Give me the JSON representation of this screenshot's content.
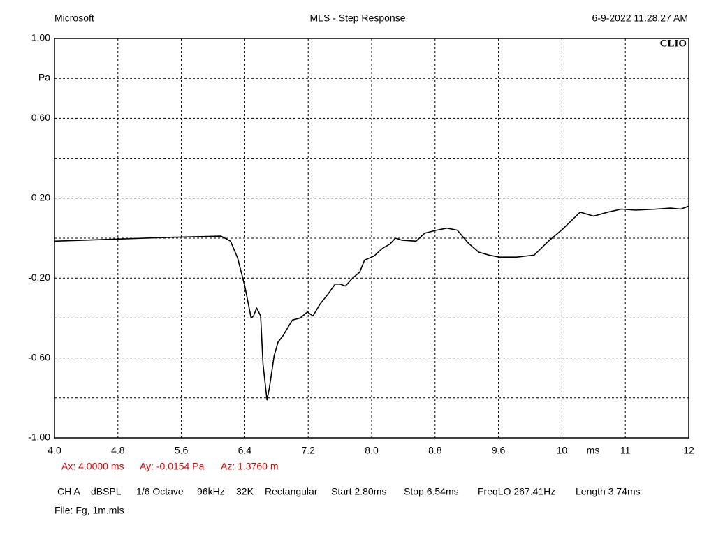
{
  "header": {
    "left": "Microsoft",
    "date": "6-9-2022 11.28.27 AM",
    "brand": "CLIO"
  },
  "chart_data": {
    "type": "line",
    "title": "MLS - Step Response",
    "xlabel": "ms",
    "ylabel": "Pa",
    "color": "#000000",
    "x": [
      4.0,
      5.52,
      6.1,
      6.22,
      6.31,
      6.4,
      6.48,
      6.51,
      6.55,
      6.6,
      6.63,
      6.68,
      6.71,
      6.77,
      6.82,
      6.88,
      7.0,
      7.1,
      7.19,
      7.26,
      7.35,
      7.45,
      7.54,
      7.6,
      7.67,
      7.76,
      7.85,
      7.91,
      8.03,
      8.14,
      8.23,
      8.3,
      8.38,
      8.56,
      8.67,
      8.82,
      8.95,
      9.08,
      9.22,
      9.35,
      9.48,
      9.61,
      9.83,
      10.05,
      10.23,
      10.41,
      10.63,
      10.8,
      10.98,
      11.15,
      11.33,
      11.59,
      11.77,
      11.9,
      12.0
    ],
    "values": [
      -0.015,
      0.005,
      0.01,
      -0.015,
      -0.1,
      -0.24,
      -0.4,
      -0.39,
      -0.35,
      -0.39,
      -0.63,
      -0.81,
      -0.75,
      -0.59,
      -0.52,
      -0.49,
      -0.41,
      -0.4,
      -0.37,
      -0.39,
      -0.33,
      -0.28,
      -0.23,
      -0.23,
      -0.24,
      -0.2,
      -0.17,
      -0.11,
      -0.09,
      -0.05,
      -0.03,
      0.0,
      -0.01,
      -0.015,
      0.025,
      0.04,
      0.05,
      0.04,
      -0.025,
      -0.07,
      -0.085,
      -0.095,
      -0.095,
      -0.085,
      -0.015,
      0.045,
      0.13,
      0.11,
      0.13,
      0.145,
      0.14,
      0.145,
      0.15,
      0.145,
      0.16
    ],
    "xlim": [
      4.0,
      12.0
    ],
    "xticks": [
      {
        "value": 4.0,
        "label": "4.0"
      },
      4.8,
      5.6,
      6.4,
      7.2,
      {
        "value": 8.0,
        "label": "8.0"
      },
      8.8,
      9.6,
      {
        "value": 10.4,
        "label": "10"
      },
      {
        "value": 11.2,
        "label": "11"
      },
      12
    ],
    "ylim": [
      -1.0,
      1.0
    ],
    "yticks": [
      {
        "value": 1.0,
        "label": "1.00"
      },
      {
        "value": 0.6,
        "label": "0.60"
      },
      {
        "value": 0.2,
        "label": "0.20"
      },
      {
        "value": -0.2,
        "label": "-0.20"
      },
      {
        "value": -0.6,
        "label": "-0.60"
      },
      {
        "value": -1.0,
        "label": "-1.00"
      }
    ],
    "yminorticks": [
      0.8,
      0.4,
      0.0,
      -0.4,
      -0.8
    ],
    "grid": true
  },
  "cursor": [
    "Ax: 4.0000 ms",
    "Ay: -0.0154 Pa",
    "Az: 1.3760 m"
  ],
  "settings": [
    "CH A",
    "dBSPL",
    "1/6 Octave",
    "96kHz",
    "32K",
    "Rectangular",
    "Start 2.80ms",
    "Stop 6.54ms",
    "FreqLO 267.41Hz",
    "Length 3.74ms"
  ],
  "file": "File: Fg, 1m.mls"
}
